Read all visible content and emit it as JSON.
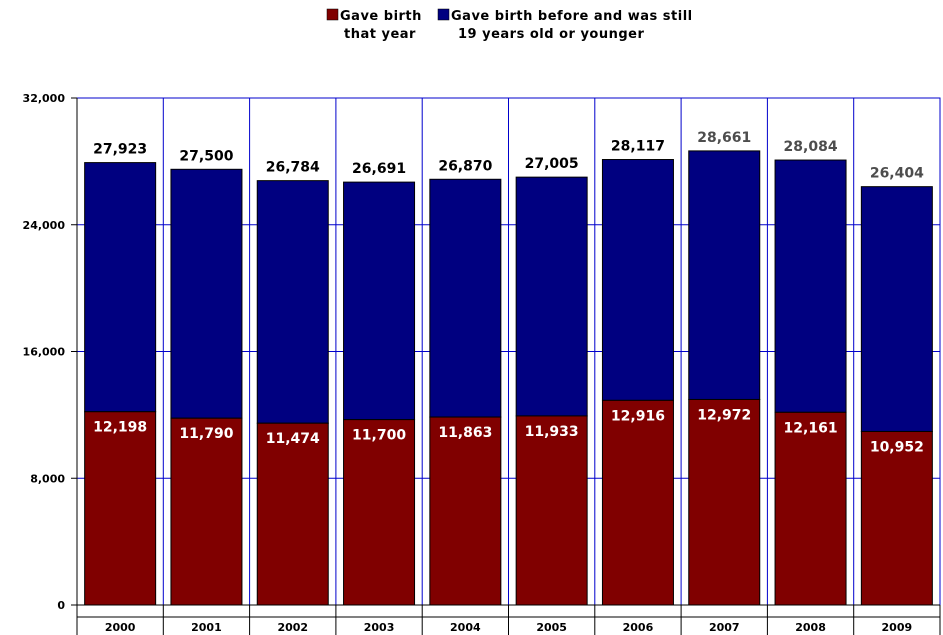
{
  "chart_data": {
    "type": "bar",
    "stacked": true,
    "categories": [
      "2000",
      "2001",
      "2002",
      "2003",
      "2004",
      "2005",
      "2006",
      "2007",
      "2008",
      "2009"
    ],
    "series": [
      {
        "name_lines": [
          "Gave birth",
          "that year"
        ],
        "color": "#800000",
        "values": [
          12198,
          11790,
          11474,
          11700,
          11863,
          11933,
          12916,
          12972,
          12161,
          10952
        ],
        "labels": [
          "12,198",
          "11,790",
          "11,474",
          "11,700",
          "11,863",
          "11,933",
          "12,916",
          "12,972",
          "12,161",
          "10,952"
        ]
      },
      {
        "name_lines": [
          "Gave birth before and was still",
          "19 years old or younger"
        ],
        "color": "#000080"
      }
    ],
    "totals": [
      27923,
      27500,
      26784,
      26691,
      26870,
      27005,
      28117,
      28661,
      28084,
      26404
    ],
    "total_labels": [
      "27,923",
      "27,500",
      "26,784",
      "26,691",
      "26,870",
      "27,005",
      "28,117",
      "28,661",
      "28,084",
      "26,404"
    ],
    "total_label_colors": [
      "#000000",
      "#000000",
      "#000000",
      "#000000",
      "#000000",
      "#000000",
      "#000000",
      "#4d4d4d",
      "#4d4d4d",
      "#4d4d4d"
    ],
    "y_ticks": [
      0,
      8000,
      16000,
      24000,
      32000
    ],
    "y_tick_labels": [
      "0",
      "8,000",
      "16,000",
      "24,000",
      "32,000"
    ],
    "ylim": [
      0,
      32000
    ],
    "grid": true,
    "legend_position": "top-center",
    "plot_border_color": "#0000cc"
  }
}
